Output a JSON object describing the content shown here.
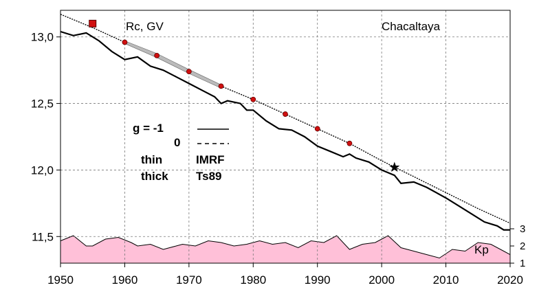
{
  "chart_data": {
    "type": "line",
    "title": "Chacaltaya",
    "ylabel": "Rc, GV",
    "xlim": [
      1950,
      2020
    ],
    "ylim": [
      11.3,
      13.2
    ],
    "x_ticks": [
      "1950",
      "1960",
      "1970",
      "1980",
      "1990",
      "2000",
      "2010",
      "2020"
    ],
    "y_ticks": [
      "11,5",
      "12,0",
      "12,5",
      "13,0"
    ],
    "y_tick_values": [
      11.5,
      12.0,
      12.5,
      13.0
    ],
    "kp_axis": {
      "label": "Kp",
      "ticks": [
        "1",
        "2",
        "3"
      ],
      "range": [
        1,
        3
      ]
    },
    "legend": {
      "row1_label": "g  = -1",
      "row2_label": "0",
      "row3_left": "thin",
      "row3_right": "IMRF",
      "row4_left": "thick",
      "row4_right": "Ts89"
    },
    "series": [
      {
        "style": "thin-dotted",
        "x": [
          1950,
          1955,
          1960,
          1965,
          1970,
          1975,
          1980,
          1985,
          1990,
          1995,
          2000,
          2005,
          2010,
          2015,
          2020
        ],
        "values": [
          13.17,
          13.07,
          12.96,
          12.86,
          12.74,
          12.63,
          12.53,
          12.42,
          12.31,
          12.2,
          12.07,
          11.95,
          11.83,
          11.71,
          11.6
        ]
      },
      {
        "style": "thick-solid",
        "x": [
          1950,
          1952,
          1954,
          1956,
          1958,
          1960,
          1962,
          1964,
          1966,
          1968,
          1970,
          1972,
          1974,
          1975,
          1976,
          1978,
          1979,
          1980,
          1982,
          1984,
          1986,
          1988,
          1990,
          1992,
          1994,
          1995,
          1996,
          1998,
          2000,
          2002,
          2003,
          2005,
          2007,
          2010,
          2012,
          2014,
          2016,
          2018,
          2019,
          2020
        ],
        "values": [
          13.04,
          13.01,
          13.03,
          12.97,
          12.89,
          12.83,
          12.85,
          12.78,
          12.75,
          12.7,
          12.65,
          12.6,
          12.55,
          12.5,
          12.52,
          12.5,
          12.45,
          12.45,
          12.37,
          12.31,
          12.3,
          12.25,
          12.18,
          12.14,
          12.1,
          12.12,
          12.09,
          12.06,
          12.0,
          11.96,
          11.9,
          11.91,
          11.87,
          11.79,
          11.73,
          11.67,
          11.61,
          11.58,
          11.55,
          11.55
        ]
      }
    ],
    "points": {
      "x": [
        1960,
        1965,
        1970,
        1975,
        1980,
        1985,
        1990,
        1995
      ],
      "values": [
        12.96,
        12.86,
        12.74,
        12.63,
        12.53,
        12.42,
        12.31,
        12.2
      ],
      "color": "#d01010"
    },
    "square_marker": {
      "x": 1955,
      "y": 13.1,
      "color": "#d01010"
    },
    "star_marker": {
      "x": 2002,
      "y": 12.02
    },
    "kp_series": {
      "x": [
        1950,
        1952,
        1954,
        1955,
        1957,
        1959,
        1961,
        1962,
        1964,
        1966,
        1968,
        1969,
        1971,
        1973,
        1975,
        1977,
        1979,
        1981,
        1983,
        1985,
        1987,
        1989,
        1991,
        1993,
        1995,
        1997,
        1999,
        2001,
        2003,
        2005,
        2007,
        2009,
        2011,
        2013,
        2015,
        2017,
        2019,
        2020
      ],
      "values": [
        2.3,
        2.6,
        2.0,
        2.0,
        2.4,
        2.5,
        2.2,
        2.0,
        2.1,
        1.8,
        2.0,
        2.1,
        2.0,
        2.3,
        2.2,
        2.0,
        2.1,
        2.3,
        2.1,
        2.2,
        1.9,
        2.3,
        2.2,
        2.6,
        1.8,
        2.1,
        2.2,
        2.6,
        1.9,
        1.7,
        1.5,
        1.3,
        1.8,
        1.7,
        2.2,
        2.1,
        1.7,
        1.5
      ],
      "color": "#ffc0d8"
    }
  }
}
